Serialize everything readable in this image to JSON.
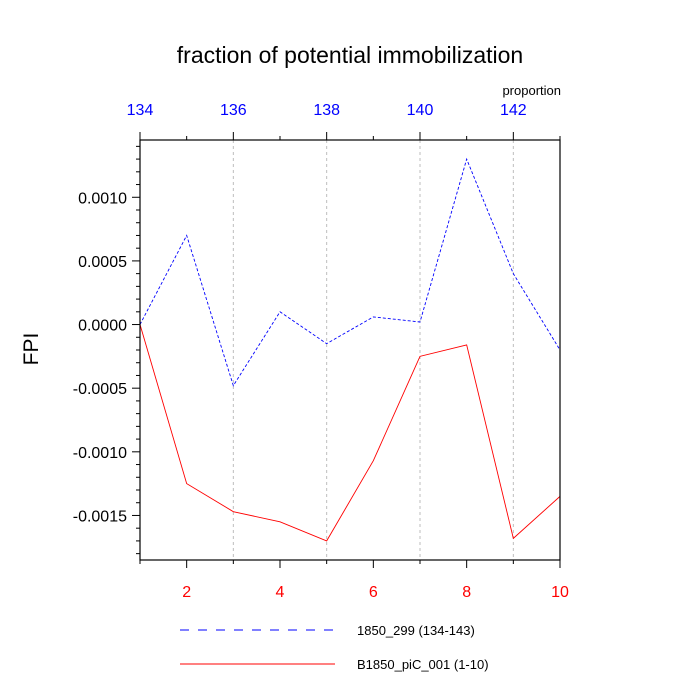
{
  "chart_data": {
    "type": "line",
    "title": "fraction of potential immobilization",
    "ylabel": "FPI",
    "top_axis_label": "proportion",
    "ylim": [
      -0.00185,
      0.00145
    ],
    "y_ticks": [
      0.001,
      0.0005,
      0.0,
      -0.0005,
      -0.001,
      -0.0015
    ],
    "y_tick_labels": [
      "0.0010",
      "0.0005",
      "0.0000",
      "-0.0005",
      "-0.0010",
      "-0.0015"
    ],
    "bottom_axis": {
      "range": [
        1,
        10
      ],
      "ticks": [
        2,
        4,
        6,
        8,
        10
      ],
      "labels": [
        "2",
        "4",
        "6",
        "8",
        "10"
      ],
      "color": "#ff0000"
    },
    "top_axis": {
      "range": [
        134,
        143
      ],
      "ticks": [
        134,
        136,
        138,
        140,
        142
      ],
      "labels": [
        "134",
        "136",
        "138",
        "140",
        "142"
      ],
      "color": "#0000ff"
    },
    "grid": "vertical dashed at top-axis ticks",
    "series": [
      {
        "name": "1850_299 (134-143)",
        "axis": "top",
        "color": "#0000ff",
        "dash": "dashed",
        "x": [
          134,
          135,
          136,
          137,
          138,
          139,
          140,
          141,
          142,
          143
        ],
        "values": [
          0.0,
          0.0007,
          -0.00048,
          0.0001,
          -0.00015,
          6e-05,
          2e-05,
          0.0013,
          0.0004,
          -0.0002
        ]
      },
      {
        "name": "B1850_piC_001 (1-10)",
        "axis": "bottom",
        "color": "#ff0000",
        "dash": "solid",
        "x": [
          1,
          2,
          3,
          4,
          5,
          6,
          7,
          8,
          9,
          10
        ],
        "values": [
          0.0,
          -0.00125,
          -0.00147,
          -0.00155,
          -0.0017,
          -0.00107,
          -0.00025,
          -0.00016,
          -0.00168,
          -0.00135
        ]
      }
    ],
    "legend_position": "bottom"
  }
}
